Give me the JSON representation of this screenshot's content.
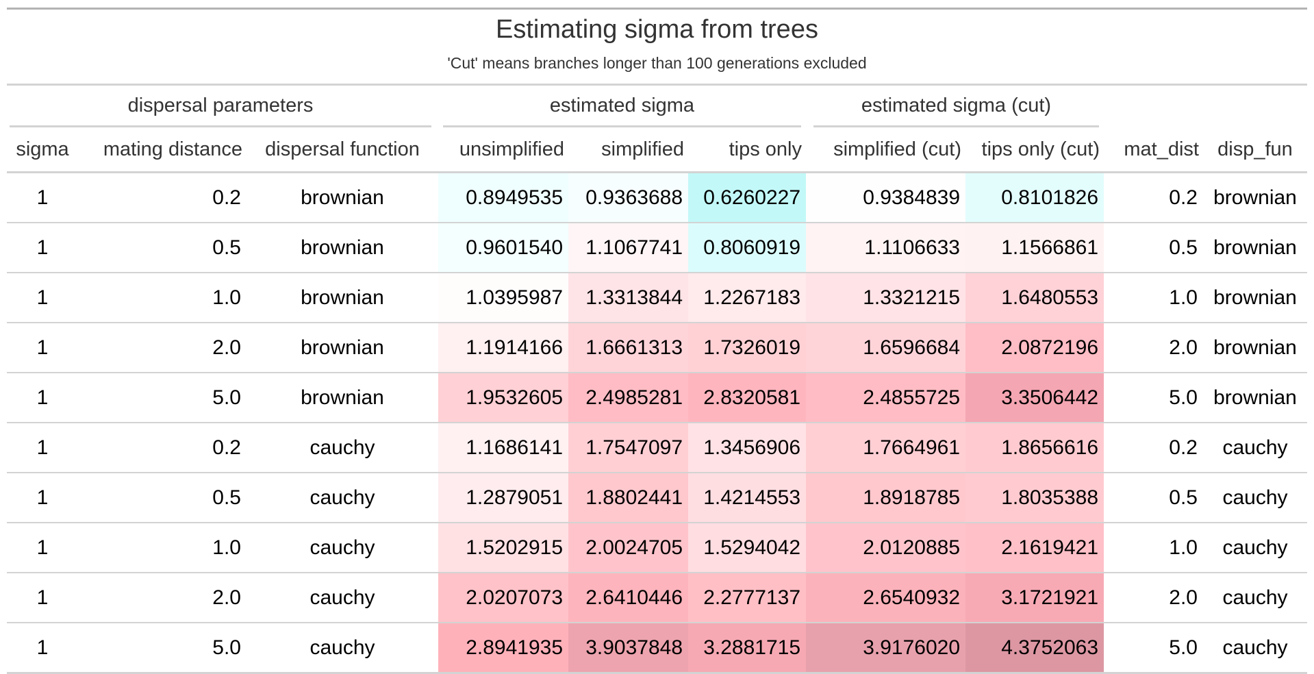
{
  "title": "Estimating sigma from trees",
  "subtitle": "'Cut' means branches longer than 100 generations excluded",
  "spanners": {
    "dispersal": "dispersal parameters",
    "estimated": "estimated sigma",
    "estimated_cut": "estimated sigma (cut)"
  },
  "columns": [
    "sigma",
    "mating distance",
    "dispersal function",
    "unsimplified",
    "simplified",
    "tips only",
    "simplified (cut)",
    "tips only (cut)",
    "mat_dist",
    "disp_fun"
  ],
  "rows": [
    [
      "1",
      "0.2",
      "brownian",
      "0.8949535",
      "0.9363688",
      "0.6260227",
      "0.9384839",
      "0.8101826",
      "0.2",
      "brownian"
    ],
    [
      "1",
      "0.5",
      "brownian",
      "0.9601540",
      "1.1067741",
      "0.8060919",
      "1.1106633",
      "1.1566861",
      "0.5",
      "brownian"
    ],
    [
      "1",
      "1.0",
      "brownian",
      "1.0395987",
      "1.3313844",
      "1.2267183",
      "1.3321215",
      "1.6480553",
      "1.0",
      "brownian"
    ],
    [
      "1",
      "2.0",
      "brownian",
      "1.1914166",
      "1.6661313",
      "1.7326019",
      "1.6596684",
      "2.0872196",
      "2.0",
      "brownian"
    ],
    [
      "1",
      "5.0",
      "brownian",
      "1.9532605",
      "2.4985281",
      "2.8320581",
      "2.4855725",
      "3.3506442",
      "5.0",
      "brownian"
    ],
    [
      "1",
      "0.2",
      "cauchy",
      "1.1686141",
      "1.7547097",
      "1.3456906",
      "1.7664961",
      "1.8656616",
      "0.2",
      "cauchy"
    ],
    [
      "1",
      "0.5",
      "cauchy",
      "1.2879051",
      "1.8802441",
      "1.4214553",
      "1.8918785",
      "1.8035388",
      "0.5",
      "cauchy"
    ],
    [
      "1",
      "1.0",
      "cauchy",
      "1.5202915",
      "2.0024705",
      "1.5294042",
      "2.0120885",
      "2.1619421",
      "1.0",
      "cauchy"
    ],
    [
      "1",
      "2.0",
      "cauchy",
      "2.0207073",
      "2.6410446",
      "2.2777137",
      "2.6540932",
      "3.1721921",
      "2.0",
      "cauchy"
    ],
    [
      "1",
      "5.0",
      "cauchy",
      "2.8941935",
      "3.9037848",
      "3.2881715",
      "3.9176020",
      "4.3752063",
      "5.0",
      "cauchy"
    ]
  ],
  "cell_colors": [
    [
      "#effefe",
      "#f7feff",
      "#c3f8f8",
      "#fffeff",
      "#e3fdfd"
    ],
    [
      "#f4ffff",
      "#fff5f6",
      "#dbfcfc",
      "#fff3f3",
      "#fff2f2"
    ],
    [
      "#fffcfc",
      "#ffe4e7",
      "#ffeaec",
      "#ffe3e6",
      "#ffd2d7"
    ],
    [
      "#fff0f1",
      "#ffd4d9",
      "#ffd1d5",
      "#ffd4d9",
      "#ffbdc5"
    ],
    [
      "#ffd0d5",
      "#ffbcc4",
      "#ffb5be",
      "#ffbcc4",
      "#f4a6b2"
    ],
    [
      "#fff1f2",
      "#ffcfd4",
      "#ffe2e5",
      "#ffcfd4",
      "#ffcbd0"
    ],
    [
      "#ffecee",
      "#ffc8cd",
      "#ffdee2",
      "#ffc8cd",
      "#ffcbd0"
    ],
    [
      "#ffe1e4",
      "#ffc4cb",
      "#ffdde1",
      "#ffc4cb",
      "#ffc0c7"
    ],
    [
      "#ffc2c8",
      "#fdb4bc",
      "#ffbfc5",
      "#fbb2ba",
      "#f7aab4"
    ],
    [
      "#ffb1ba",
      "#eda4ae",
      "#f6a9b3",
      "#e7a1ac",
      "#dc97a3"
    ]
  ]
}
